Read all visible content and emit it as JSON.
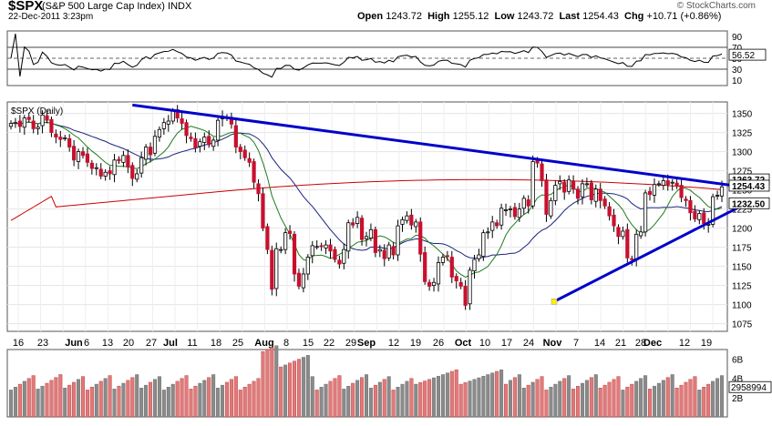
{
  "header": {
    "symbol": "$SPX",
    "name": "(S&P 500 Large Cap Index)",
    "exchange": "INDX",
    "datetime": "22-Dec-2011 3:23pm",
    "open_label": "Open",
    "open": "1243.72",
    "high_label": "High",
    "high": "1255.12",
    "low_label": "Low",
    "low": "1243.72",
    "last_label": "Last",
    "last": "1254.43",
    "chg_label": "Chg",
    "chg": "+10.71 (+0.86%)",
    "brand": "© StockCharts.com"
  },
  "chart_data": {
    "type": "candlestick",
    "series_label": "$SPX (Daily)",
    "ylim": [
      1065,
      1365
    ],
    "y_ticks": [
      1075,
      1100,
      1125,
      1150,
      1175,
      1200,
      1225,
      1250,
      1275,
      1300,
      1325,
      1350
    ],
    "x_labels": [
      "16",
      "23",
      "Jun",
      "6",
      "13",
      "20",
      "27",
      "Jul",
      "11",
      "18",
      "25",
      "Aug",
      "8",
      "15",
      "22",
      "29",
      "Sep",
      "12",
      "19",
      "26",
      "Oct",
      "10",
      "17",
      "24",
      "Nov",
      "7",
      "14",
      "21",
      "28",
      "Dec",
      "12",
      "19"
    ],
    "closes": [
      1337,
      1338,
      1333,
      1344,
      1342,
      1330,
      1332,
      1348,
      1341,
      1325,
      1319,
      1316,
      1318,
      1306,
      1289,
      1300,
      1295,
      1286,
      1278,
      1279,
      1268,
      1273,
      1271,
      1289,
      1288,
      1295,
      1280,
      1265,
      1271,
      1292,
      1306,
      1296,
      1320,
      1329,
      1338,
      1340,
      1353,
      1344,
      1337,
      1321,
      1317,
      1305,
      1313,
      1319,
      1309,
      1315,
      1341,
      1346,
      1344,
      1336,
      1306,
      1300,
      1292,
      1286,
      1260,
      1245,
      1200,
      1172,
      1120,
      1173,
      1172,
      1194,
      1193,
      1140,
      1124,
      1140,
      1162,
      1177,
      1176,
      1176,
      1178,
      1170,
      1159,
      1153,
      1172,
      1207,
      1204,
      1214,
      1185,
      1189,
      1198,
      1168,
      1172,
      1160,
      1178,
      1165,
      1203,
      1211,
      1216,
      1204,
      1208,
      1166,
      1130,
      1124,
      1129,
      1155,
      1162,
      1163,
      1136,
      1131,
      1124,
      1099,
      1145,
      1159,
      1165,
      1194,
      1195,
      1208,
      1203,
      1226,
      1224,
      1225,
      1215,
      1225,
      1239,
      1229,
      1287,
      1285,
      1262,
      1218,
      1236,
      1256,
      1261,
      1247,
      1263,
      1251,
      1239,
      1258,
      1258,
      1237,
      1251,
      1236,
      1229,
      1216,
      1203,
      1189,
      1196,
      1161,
      1159,
      1192,
      1195,
      1246,
      1244,
      1257,
      1258,
      1262,
      1257,
      1260,
      1255,
      1240,
      1236,
      1220,
      1212,
      1219,
      1206,
      1205,
      1241,
      1243,
      1254
    ],
    "rsi": {
      "label": "RSI(14)",
      "ylim": [
        0,
        100
      ],
      "levels": [
        30,
        70
      ],
      "ticks": [
        10,
        30,
        50,
        70,
        90
      ],
      "last": "56.52"
    },
    "ma_short_last": "1232.50",
    "ma_long_last": "1263.72",
    "last_price": "1254.43",
    "volume": {
      "ticks": [
        "2B",
        "4B",
        "6B"
      ],
      "last": "2958994"
    },
    "colors": {
      "up": "#ffffff",
      "down": "#c8102e",
      "trend": "#0000cc",
      "ma20": "#207a20",
      "ma50": "#1a237e",
      "ma200": "#cc0000",
      "vol_up": "#8a8a8a",
      "vol_down": "#e07a7a",
      "rsi": "#000000",
      "marker": "#ffee00"
    }
  }
}
